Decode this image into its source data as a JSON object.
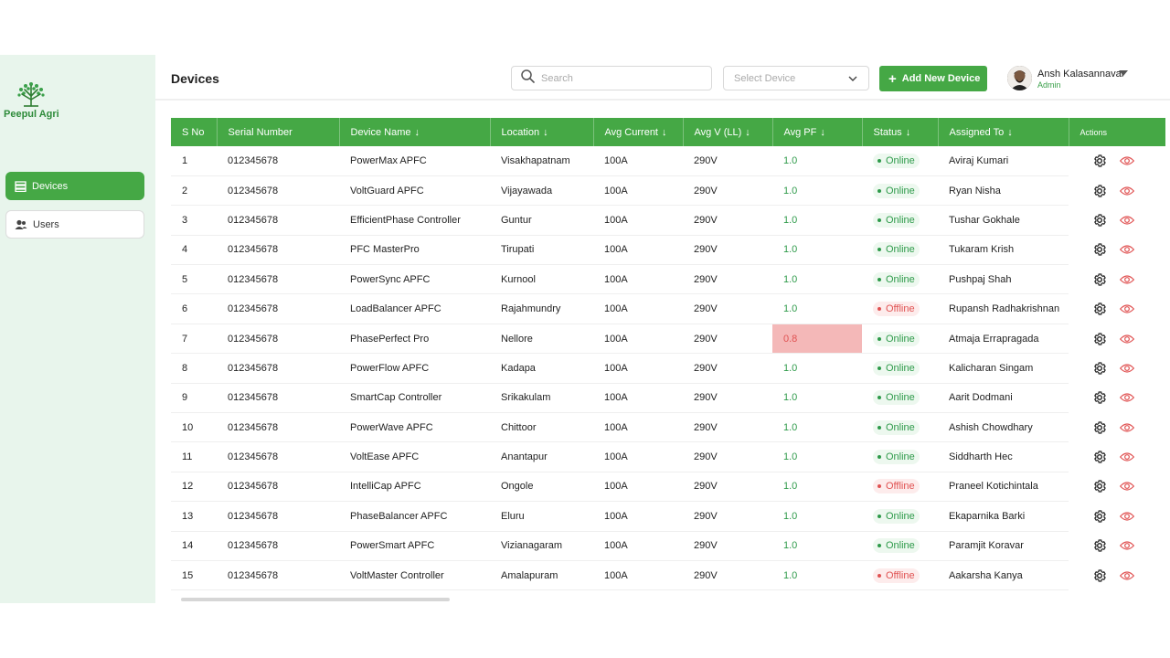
{
  "brand": {
    "name": "Peepul Agri"
  },
  "colors": {
    "accent": "#45a845",
    "online": "#2e9a4a",
    "offline": "#e05252",
    "sidebar_bg": "#e8f5ec"
  },
  "sidebar": {
    "items": [
      {
        "label": "Devices",
        "icon": "devices-icon",
        "active": true
      },
      {
        "label": "Users",
        "icon": "users-icon",
        "active": false
      }
    ]
  },
  "header": {
    "title": "Devices",
    "search_placeholder": "Search",
    "select_placeholder": "Select Device",
    "add_button_label": "Add New Device",
    "user": {
      "name": "Ansh Kalasannavar",
      "role": "Admin"
    }
  },
  "table": {
    "columns": [
      "S No",
      "Serial Number",
      "Device Name",
      "Location",
      "Avg Current",
      "Avg V (LL)",
      "Avg PF",
      "Status",
      "Assigned To",
      "Actions"
    ],
    "sortable": [
      false,
      false,
      true,
      true,
      true,
      true,
      true,
      true,
      true,
      false
    ],
    "rows": [
      {
        "sno": "1",
        "serial": "012345678",
        "name": "PowerMax APFC",
        "location": "Visakhapatnam",
        "current": "100A",
        "voltage": "290V",
        "pf": "1.0",
        "status": "Online",
        "assigned": "Aviraj Kumari"
      },
      {
        "sno": "2",
        "serial": "012345678",
        "name": "VoltGuard APFC",
        "location": "Vijayawada",
        "current": "100A",
        "voltage": "290V",
        "pf": "1.0",
        "status": "Online",
        "assigned": "Ryan Nisha"
      },
      {
        "sno": "3",
        "serial": "012345678",
        "name": "EfficientPhase Controller",
        "location": "Guntur",
        "current": "100A",
        "voltage": "290V",
        "pf": "1.0",
        "status": "Online",
        "assigned": "Tushar Gokhale"
      },
      {
        "sno": "4",
        "serial": "012345678",
        "name": "PFC MasterPro",
        "location": "Tirupati",
        "current": "100A",
        "voltage": "290V",
        "pf": "1.0",
        "status": "Online",
        "assigned": "Tukaram Krish"
      },
      {
        "sno": "5",
        "serial": "012345678",
        "name": "PowerSync APFC",
        "location": "Kurnool",
        "current": "100A",
        "voltage": "290V",
        "pf": "1.0",
        "status": "Online",
        "assigned": "Pushpaj Shah"
      },
      {
        "sno": "6",
        "serial": "012345678",
        "name": "LoadBalancer APFC",
        "location": "Rajahmundry",
        "current": "100A",
        "voltage": "290V",
        "pf": "1.0",
        "status": "Offline",
        "assigned": "Rupansh Radhakrishnan"
      },
      {
        "sno": "7",
        "serial": "012345678",
        "name": "PhasePerfect Pro",
        "location": "Nellore",
        "current": "100A",
        "voltage": "290V",
        "pf": "0.8",
        "status": "Online",
        "assigned": "Atmaja Errapragada"
      },
      {
        "sno": "8",
        "serial": "012345678",
        "name": "PowerFlow APFC",
        "location": "Kadapa",
        "current": "100A",
        "voltage": "290V",
        "pf": "1.0",
        "status": "Online",
        "assigned": "Kalicharan Singam"
      },
      {
        "sno": "9",
        "serial": "012345678",
        "name": "SmartCap Controller",
        "location": "Srikakulam",
        "current": "100A",
        "voltage": "290V",
        "pf": "1.0",
        "status": "Online",
        "assigned": "Aarit Dodmani"
      },
      {
        "sno": "10",
        "serial": "012345678",
        "name": "PowerWave APFC",
        "location": "Chittoor",
        "current": "100A",
        "voltage": "290V",
        "pf": "1.0",
        "status": "Online",
        "assigned": "Ashish Chowdhary"
      },
      {
        "sno": "11",
        "serial": "012345678",
        "name": "VoltEase APFC",
        "location": "Anantapur",
        "current": "100A",
        "voltage": "290V",
        "pf": "1.0",
        "status": "Online",
        "assigned": "Siddharth Hec"
      },
      {
        "sno": "12",
        "serial": "012345678",
        "name": "IntelliCap APFC",
        "location": "Ongole",
        "current": "100A",
        "voltage": "290V",
        "pf": "1.0",
        "status": "Offline",
        "assigned": "Praneel Kotichintala"
      },
      {
        "sno": "13",
        "serial": "012345678",
        "name": "PhaseBalancer APFC",
        "location": "Eluru",
        "current": "100A",
        "voltage": "290V",
        "pf": "1.0",
        "status": "Online",
        "assigned": "Ekaparnika Barki"
      },
      {
        "sno": "14",
        "serial": "012345678",
        "name": "PowerSmart APFC",
        "location": "Vizianagaram",
        "current": "100A",
        "voltage": "290V",
        "pf": "1.0",
        "status": "Online",
        "assigned": "Paramjit Koravar"
      },
      {
        "sno": "15",
        "serial": "012345678",
        "name": "VoltMaster Controller",
        "location": "Amalapuram",
        "current": "100A",
        "voltage": "290V",
        "pf": "1.0",
        "status": "Offline",
        "assigned": "Aakarsha Kanya"
      }
    ],
    "row_actions": [
      "settings-icon",
      "view-icon"
    ]
  }
}
